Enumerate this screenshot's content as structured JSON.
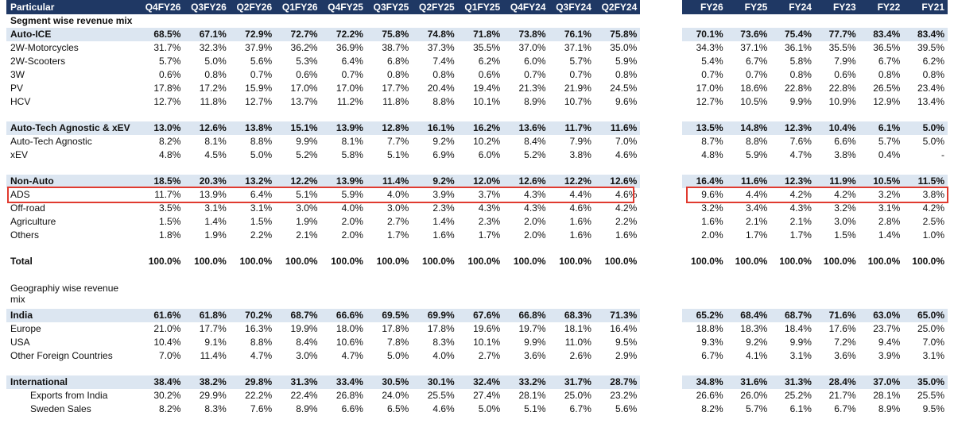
{
  "left_table": {
    "columns": [
      "Particular",
      "Q4FY26",
      "Q3FY26",
      "Q2FY26",
      "Q1FY26",
      "Q4FY25",
      "Q3FY25",
      "Q2FY25",
      "Q1FY25",
      "Q4FY24",
      "Q3FY24",
      "Q2FY24"
    ],
    "rows": [
      {
        "type": "header",
        "label": "Particular",
        "values": [
          "Q4FY26",
          "Q3FY26",
          "Q2FY26",
          "Q1FY26",
          "Q4FY25",
          "Q3FY25",
          "Q2FY25",
          "Q1FY25",
          "Q4FY24",
          "Q3FY24",
          "Q2FY24"
        ]
      },
      {
        "type": "section",
        "label": "Segment wise revenue mix",
        "values": [
          "",
          "",
          "",
          "",
          "",
          "",
          "",
          "",
          "",
          "",
          ""
        ]
      },
      {
        "type": "band",
        "label": "Auto-ICE",
        "values": [
          "68.5%",
          "67.1%",
          "72.9%",
          "72.7%",
          "72.2%",
          "75.8%",
          "74.8%",
          "71.8%",
          "73.8%",
          "76.1%",
          "75.8%"
        ]
      },
      {
        "type": "normal",
        "label": "2W-Motorcycles",
        "values": [
          "31.7%",
          "32.3%",
          "37.9%",
          "36.2%",
          "36.9%",
          "38.7%",
          "37.3%",
          "35.5%",
          "37.0%",
          "37.1%",
          "35.0%"
        ]
      },
      {
        "type": "normal",
        "label": "2W-Scooters",
        "values": [
          "5.7%",
          "5.0%",
          "5.6%",
          "5.3%",
          "6.4%",
          "6.8%",
          "7.4%",
          "6.2%",
          "6.0%",
          "5.7%",
          "5.9%"
        ]
      },
      {
        "type": "normal",
        "label": "3W",
        "values": [
          "0.6%",
          "0.8%",
          "0.7%",
          "0.6%",
          "0.7%",
          "0.8%",
          "0.8%",
          "0.6%",
          "0.7%",
          "0.7%",
          "0.8%"
        ]
      },
      {
        "type": "normal",
        "label": "PV",
        "values": [
          "17.8%",
          "17.2%",
          "15.9%",
          "17.0%",
          "17.0%",
          "17.7%",
          "20.4%",
          "19.4%",
          "21.3%",
          "21.9%",
          "24.5%"
        ]
      },
      {
        "type": "normal",
        "label": "HCV",
        "values": [
          "12.7%",
          "11.8%",
          "12.7%",
          "13.7%",
          "11.2%",
          "11.8%",
          "8.8%",
          "10.1%",
          "8.9%",
          "10.7%",
          "9.6%"
        ]
      },
      {
        "type": "spacer",
        "label": "",
        "values": [
          "",
          "",
          "",
          "",
          "",
          "",
          "",
          "",
          "",
          "",
          ""
        ]
      },
      {
        "type": "band",
        "label": "Auto-Tech Agnostic & xEV",
        "values": [
          "13.0%",
          "12.6%",
          "13.8%",
          "15.1%",
          "13.9%",
          "12.8%",
          "16.1%",
          "16.2%",
          "13.6%",
          "11.7%",
          "11.6%"
        ]
      },
      {
        "type": "normal",
        "label": "Auto-Tech Agnostic",
        "values": [
          "8.2%",
          "8.1%",
          "8.8%",
          "9.9%",
          "8.1%",
          "7.7%",
          "9.2%",
          "10.2%",
          "8.4%",
          "7.9%",
          "7.0%"
        ]
      },
      {
        "type": "normal",
        "label": "xEV",
        "values": [
          "4.8%",
          "4.5%",
          "5.0%",
          "5.2%",
          "5.8%",
          "5.1%",
          "6.9%",
          "6.0%",
          "5.2%",
          "3.8%",
          "4.6%"
        ]
      },
      {
        "type": "spacer",
        "label": "",
        "values": [
          "",
          "",
          "",
          "",
          "",
          "",
          "",
          "",
          "",
          "",
          ""
        ]
      },
      {
        "type": "band",
        "label": "Non-Auto",
        "values": [
          "18.5%",
          "20.3%",
          "13.2%",
          "12.2%",
          "13.9%",
          "11.4%",
          "9.2%",
          "12.0%",
          "12.6%",
          "12.2%",
          "12.6%"
        ]
      },
      {
        "type": "normal",
        "label": "ADS",
        "values": [
          "11.7%",
          "13.9%",
          "6.4%",
          "5.1%",
          "5.9%",
          "4.0%",
          "3.9%",
          "3.7%",
          "4.3%",
          "4.4%",
          "4.6%"
        ]
      },
      {
        "type": "normal",
        "label": "Off-road",
        "values": [
          "3.5%",
          "3.1%",
          "3.1%",
          "3.0%",
          "4.0%",
          "3.0%",
          "2.3%",
          "4.3%",
          "4.3%",
          "4.6%",
          "4.2%"
        ]
      },
      {
        "type": "normal",
        "label": "Agriculture",
        "values": [
          "1.5%",
          "1.4%",
          "1.5%",
          "1.9%",
          "2.0%",
          "2.7%",
          "1.4%",
          "2.3%",
          "2.0%",
          "1.6%",
          "2.2%"
        ]
      },
      {
        "type": "normal",
        "label": "Others",
        "values": [
          "1.8%",
          "1.9%",
          "2.2%",
          "2.1%",
          "2.0%",
          "1.7%",
          "1.6%",
          "1.7%",
          "2.0%",
          "1.6%",
          "1.6%"
        ]
      },
      {
        "type": "spacer",
        "label": "",
        "values": [
          "",
          "",
          "",
          "",
          "",
          "",
          "",
          "",
          "",
          "",
          ""
        ]
      },
      {
        "type": "bold",
        "label": "Total",
        "values": [
          "100.0%",
          "100.0%",
          "100.0%",
          "100.0%",
          "100.0%",
          "100.0%",
          "100.0%",
          "100.0%",
          "100.0%",
          "100.0%",
          "100.0%"
        ]
      },
      {
        "type": "spacer",
        "label": "",
        "values": [
          "",
          "",
          "",
          "",
          "",
          "",
          "",
          "",
          "",
          "",
          ""
        ]
      },
      {
        "type": "tall",
        "label": "Geographiy wise revenue mix",
        "values": [
          "",
          "",
          "",
          "",
          "",
          "",
          "",
          "",
          "",
          "",
          ""
        ]
      },
      {
        "type": "band",
        "label": "India",
        "values": [
          "61.6%",
          "61.8%",
          "70.2%",
          "68.7%",
          "66.6%",
          "69.5%",
          "69.9%",
          "67.6%",
          "66.8%",
          "68.3%",
          "71.3%"
        ]
      },
      {
        "type": "normal",
        "label": "Europe",
        "values": [
          "21.0%",
          "17.7%",
          "16.3%",
          "19.9%",
          "18.0%",
          "17.8%",
          "17.8%",
          "19.6%",
          "19.7%",
          "18.1%",
          "16.4%"
        ]
      },
      {
        "type": "normal",
        "label": "USA",
        "values": [
          "10.4%",
          "9.1%",
          "8.8%",
          "8.4%",
          "10.6%",
          "7.8%",
          "8.3%",
          "10.1%",
          "9.9%",
          "11.0%",
          "9.5%"
        ]
      },
      {
        "type": "normal",
        "label": "Other Foreign Countries",
        "values": [
          "7.0%",
          "11.4%",
          "4.7%",
          "3.0%",
          "4.7%",
          "5.0%",
          "4.0%",
          "2.7%",
          "3.6%",
          "2.6%",
          "2.9%"
        ]
      },
      {
        "type": "spacer",
        "label": "",
        "values": [
          "",
          "",
          "",
          "",
          "",
          "",
          "",
          "",
          "",
          "",
          ""
        ]
      },
      {
        "type": "band",
        "label": "International",
        "values": [
          "38.4%",
          "38.2%",
          "29.8%",
          "31.3%",
          "33.4%",
          "30.5%",
          "30.1%",
          "32.4%",
          "33.2%",
          "31.7%",
          "28.7%"
        ]
      },
      {
        "type": "indent",
        "label": "Exports from India",
        "values": [
          "30.2%",
          "29.9%",
          "22.2%",
          "22.4%",
          "26.8%",
          "24.0%",
          "25.5%",
          "27.4%",
          "28.1%",
          "25.0%",
          "23.2%"
        ]
      },
      {
        "type": "indent",
        "label": "Sweden Sales",
        "values": [
          "8.2%",
          "8.3%",
          "7.6%",
          "8.9%",
          "6.6%",
          "6.5%",
          "4.6%",
          "5.0%",
          "5.1%",
          "6.7%",
          "5.6%"
        ]
      }
    ]
  },
  "right_table": {
    "rows": [
      {
        "type": "header",
        "values": [
          "FY26",
          "FY25",
          "FY24",
          "FY23",
          "FY22",
          "FY21"
        ]
      },
      {
        "type": "section",
        "values": [
          "",
          "",
          "",
          "",
          "",
          ""
        ]
      },
      {
        "type": "band",
        "values": [
          "70.1%",
          "73.6%",
          "75.4%",
          "77.7%",
          "83.4%",
          "83.4%"
        ]
      },
      {
        "type": "normal",
        "values": [
          "34.3%",
          "37.1%",
          "36.1%",
          "35.5%",
          "36.5%",
          "39.5%"
        ]
      },
      {
        "type": "normal",
        "values": [
          "5.4%",
          "6.7%",
          "5.8%",
          "7.9%",
          "6.7%",
          "6.2%"
        ]
      },
      {
        "type": "normal",
        "values": [
          "0.7%",
          "0.7%",
          "0.8%",
          "0.6%",
          "0.8%",
          "0.8%"
        ]
      },
      {
        "type": "normal",
        "values": [
          "17.0%",
          "18.6%",
          "22.8%",
          "22.8%",
          "26.5%",
          "23.4%"
        ]
      },
      {
        "type": "normal",
        "values": [
          "12.7%",
          "10.5%",
          "9.9%",
          "10.9%",
          "12.9%",
          "13.4%"
        ]
      },
      {
        "type": "spacer",
        "values": [
          "",
          "",
          "",
          "",
          "",
          ""
        ]
      },
      {
        "type": "band",
        "values": [
          "13.5%",
          "14.8%",
          "12.3%",
          "10.4%",
          "6.1%",
          "5.0%"
        ]
      },
      {
        "type": "normal",
        "values": [
          "8.7%",
          "8.8%",
          "7.6%",
          "6.6%",
          "5.7%",
          "5.0%"
        ]
      },
      {
        "type": "normal",
        "values": [
          "4.8%",
          "5.9%",
          "4.7%",
          "3.8%",
          "0.4%",
          "-"
        ]
      },
      {
        "type": "spacer",
        "values": [
          "",
          "",
          "",
          "",
          "",
          ""
        ]
      },
      {
        "type": "band",
        "values": [
          "16.4%",
          "11.6%",
          "12.3%",
          "11.9%",
          "10.5%",
          "11.5%"
        ]
      },
      {
        "type": "normal",
        "values": [
          "9.6%",
          "4.4%",
          "4.2%",
          "4.2%",
          "3.2%",
          "3.8%"
        ]
      },
      {
        "type": "normal",
        "values": [
          "3.2%",
          "3.4%",
          "4.3%",
          "3.2%",
          "3.1%",
          "4.2%"
        ]
      },
      {
        "type": "normal",
        "values": [
          "1.6%",
          "2.1%",
          "2.1%",
          "3.0%",
          "2.8%",
          "2.5%"
        ]
      },
      {
        "type": "normal",
        "values": [
          "2.0%",
          "1.7%",
          "1.7%",
          "1.5%",
          "1.4%",
          "1.0%"
        ]
      },
      {
        "type": "spacer",
        "values": [
          "",
          "",
          "",
          "",
          "",
          ""
        ]
      },
      {
        "type": "bold",
        "values": [
          "100.0%",
          "100.0%",
          "100.0%",
          "100.0%",
          "100.0%",
          "100.0%"
        ]
      },
      {
        "type": "spacer",
        "values": [
          "",
          "",
          "",
          "",
          "",
          ""
        ]
      },
      {
        "type": "tall",
        "values": [
          "",
          "",
          "",
          "",
          "",
          ""
        ]
      },
      {
        "type": "band",
        "values": [
          "65.2%",
          "68.4%",
          "68.7%",
          "71.6%",
          "63.0%",
          "65.0%"
        ]
      },
      {
        "type": "normal",
        "values": [
          "18.8%",
          "18.3%",
          "18.4%",
          "17.6%",
          "23.7%",
          "25.0%"
        ]
      },
      {
        "type": "normal",
        "values": [
          "9.3%",
          "9.2%",
          "9.9%",
          "7.2%",
          "9.4%",
          "7.0%"
        ]
      },
      {
        "type": "normal",
        "values": [
          "6.7%",
          "4.1%",
          "3.1%",
          "3.6%",
          "3.9%",
          "3.1%"
        ]
      },
      {
        "type": "spacer",
        "values": [
          "",
          "",
          "",
          "",
          "",
          ""
        ]
      },
      {
        "type": "band",
        "values": [
          "34.8%",
          "31.6%",
          "31.3%",
          "28.4%",
          "37.0%",
          "35.0%"
        ]
      },
      {
        "type": "indent",
        "values": [
          "26.6%",
          "26.0%",
          "25.2%",
          "21.7%",
          "28.1%",
          "25.5%"
        ]
      },
      {
        "type": "indent",
        "values": [
          "8.2%",
          "5.7%",
          "6.1%",
          "6.7%",
          "8.9%",
          "9.5%"
        ]
      }
    ]
  },
  "highlight": {
    "row_label": "ADS",
    "color": "#e03a2f"
  },
  "colors": {
    "header_bg": "#1f3864",
    "band_bg": "#dce6f1"
  }
}
